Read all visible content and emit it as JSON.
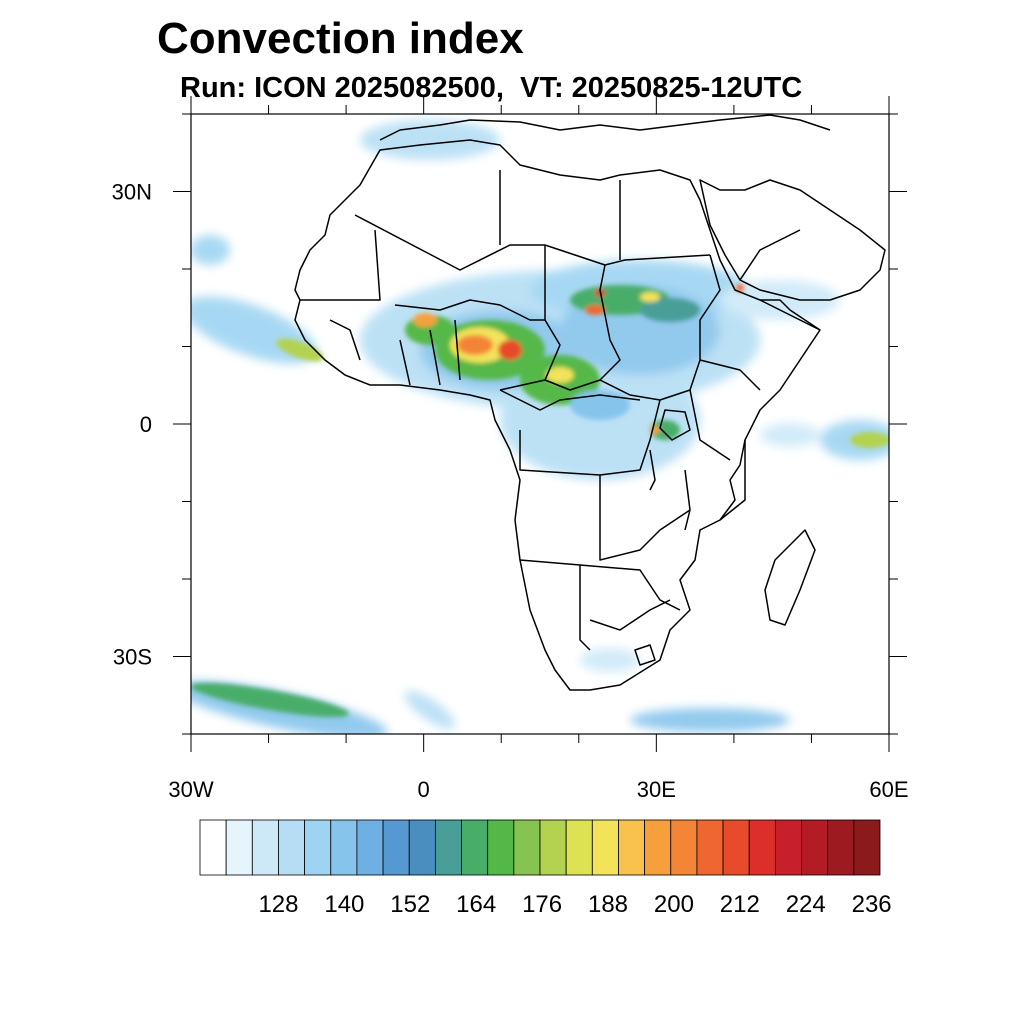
{
  "title": "Convection index",
  "subtitle": "Run: ICON 2025082500,  VT: 20250825-12UTC",
  "map": {
    "lon_range": [
      -30,
      60
    ],
    "lat_range": [
      -40,
      40
    ],
    "x_ticks": [
      {
        "value": -30,
        "label": "30W"
      },
      {
        "value": 0,
        "label": "0"
      },
      {
        "value": 30,
        "label": "30E"
      },
      {
        "value": 60,
        "label": "60E"
      }
    ],
    "y_ticks": [
      {
        "value": 30,
        "label": "30N"
      },
      {
        "value": 0,
        "label": "0"
      },
      {
        "value": -30,
        "label": "30S"
      }
    ]
  },
  "colorbar": {
    "colors": [
      "#ffffff",
      "#e6f4fc",
      "#cde9f8",
      "#b5def4",
      "#9ed4f2",
      "#86c4ec",
      "#6eb0e2",
      "#5698d2",
      "#4a8ec0",
      "#4a9e98",
      "#49ad6a",
      "#54b848",
      "#86c451",
      "#b3d24f",
      "#dde253",
      "#f2e35a",
      "#f8c24c",
      "#f6a03c",
      "#f48436",
      "#ef6630",
      "#e84a2c",
      "#dd2f2a",
      "#c8202a",
      "#b31c25",
      "#9c1a20",
      "#8a1a1c"
    ],
    "labels": [
      "128",
      "140",
      "152",
      "164",
      "176",
      "188",
      "200",
      "212",
      "224",
      "236"
    ]
  }
}
